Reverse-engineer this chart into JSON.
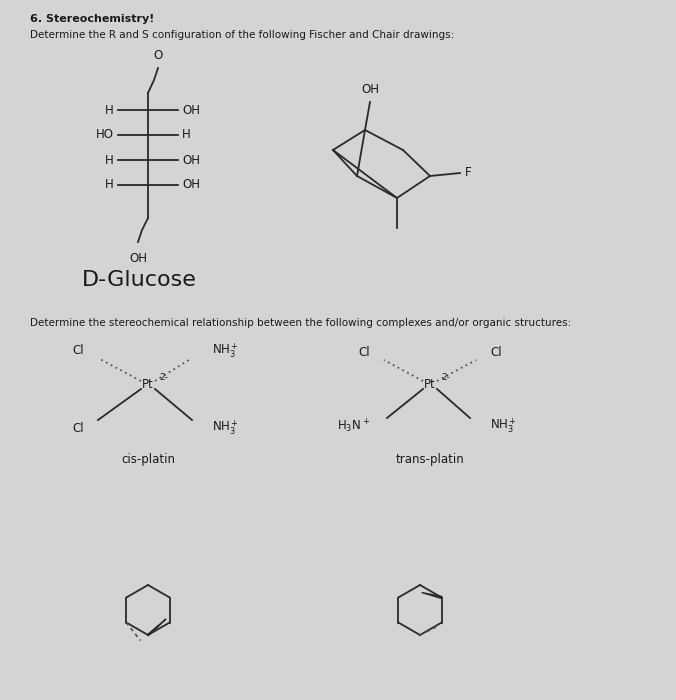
{
  "bg_color": "#d4d4d4",
  "title": "6. Stereochemistry!",
  "subtitle1": "Determine the R and S configuration of the following Fischer and Chair drawings:",
  "subtitle2": "Determine the stereochemical relationship between the following complexes and/or organic structures:",
  "d_glucose_label": "D-Glucose",
  "cis_label": "cis-platin",
  "trans_label": "trans-platin",
  "text_color": "#1a1a1a",
  "line_color": "#2a2a2a",
  "dash_color": "#555555",
  "figsize": [
    6.76,
    7.0
  ],
  "dpi": 100
}
